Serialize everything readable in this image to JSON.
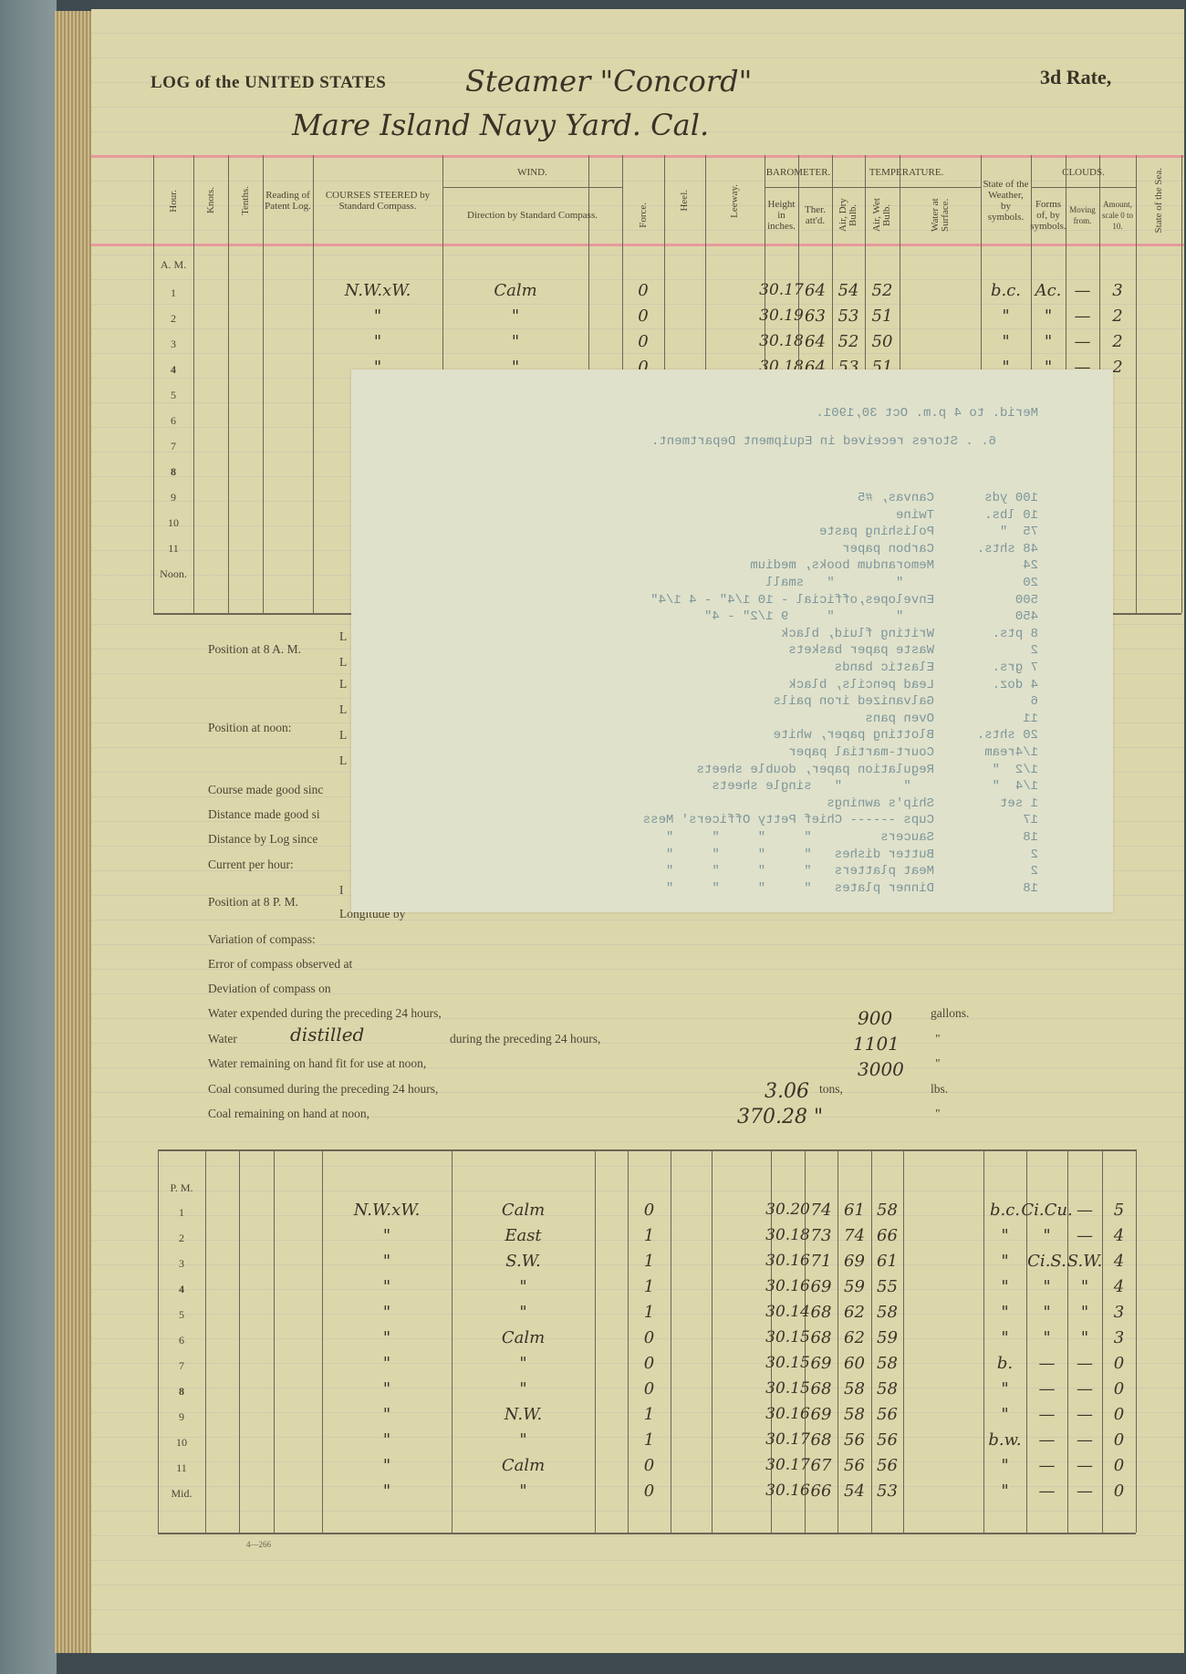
{
  "header": {
    "printed_title": "LOG of the UNITED STATES",
    "vessel": "Steamer \"Concord\"",
    "rate": "3d Rate,",
    "location": "Mare Island Navy Yard. Cal."
  },
  "columns": {
    "hour": "Hour.",
    "knots": "Knots.",
    "tenths": "Tenths.",
    "patent_log": "Reading of Patent Log.",
    "courses": "COURSES STEERED by Standard Compass.",
    "wind": "WIND.",
    "wind_direction": "Direction by Standard Compass.",
    "force": "Force.",
    "heel": "Heel.",
    "leeway": "Leeway.",
    "barometer": "BAROMETER.",
    "height": "Height in inches.",
    "ther": "Ther. att'd.",
    "temperature": "TEMPERATURE.",
    "dry": "Air, Dry Bulb.",
    "wet": "Air, Wet Bulb.",
    "water": "Water at Surface.",
    "weather": "State of the Weather, by symbols.",
    "clouds": "CLOUDS.",
    "forms": "Forms of, by symbols.",
    "moving": "Moving from.",
    "amount": "Amount, scale 0 to 10.",
    "sea": "State of the Sea."
  },
  "am": {
    "label": "A. M.",
    "hours": [
      "1",
      "2",
      "3",
      "4",
      "5",
      "6",
      "7",
      "8",
      "9",
      "10",
      "11",
      "Noon."
    ],
    "rows": [
      {
        "course": "N.W.xW.",
        "wind": "Calm",
        "force": "0",
        "height": "30.17",
        "ther": "64",
        "dry": "54",
        "wet": "52",
        "weather": "b.c.",
        "forms": "Ac.",
        "moving": "—",
        "amount": "3"
      },
      {
        "course": "\"",
        "wind": "\"",
        "force": "0",
        "height": "30.19",
        "ther": "63",
        "dry": "53",
        "wet": "51",
        "weather": "\"",
        "forms": "\"",
        "moving": "—",
        "amount": "2"
      },
      {
        "course": "\"",
        "wind": "\"",
        "force": "0",
        "height": "30.18",
        "ther": "64",
        "dry": "52",
        "wet": "50",
        "weather": "\"",
        "forms": "\"",
        "moving": "—",
        "amount": "2"
      },
      {
        "course": "\"",
        "wind": "\"",
        "force": "0",
        "height": "30.18",
        "ther": "64",
        "dry": "53",
        "wet": "51",
        "weather": "\"",
        "forms": "\"",
        "moving": "—",
        "amount": "2"
      }
    ]
  },
  "pm": {
    "label": "P. M.",
    "hours": [
      "1",
      "2",
      "3",
      "4",
      "5",
      "6",
      "7",
      "8",
      "9",
      "10",
      "11",
      "Mid."
    ],
    "rows": [
      {
        "course": "N.W.xW.",
        "wind": "Calm",
        "force": "0",
        "height": "30.20",
        "ther": "74",
        "dry": "61",
        "wet": "58",
        "weather": "b.c.",
        "forms": "Ci.Cu.",
        "moving": "—",
        "amount": "5"
      },
      {
        "course": "\"",
        "wind": "East",
        "force": "1",
        "height": "30.18",
        "ther": "73",
        "dry": "74",
        "wet": "66",
        "weather": "\"",
        "forms": "\"",
        "moving": "—",
        "amount": "4"
      },
      {
        "course": "\"",
        "wind": "S.W.",
        "force": "1",
        "height": "30.16",
        "ther": "71",
        "dry": "69",
        "wet": "61",
        "weather": "\"",
        "forms": "Ci.S.",
        "moving": "S.W.",
        "amount": "4"
      },
      {
        "course": "\"",
        "wind": "\"",
        "force": "1",
        "height": "30.16",
        "ther": "69",
        "dry": "59",
        "wet": "55",
        "weather": "\"",
        "forms": "\"",
        "moving": "\"",
        "amount": "4"
      },
      {
        "course": "\"",
        "wind": "\"",
        "force": "1",
        "height": "30.14",
        "ther": "68",
        "dry": "62",
        "wet": "58",
        "weather": "\"",
        "forms": "\"",
        "moving": "\"",
        "amount": "3"
      },
      {
        "course": "\"",
        "wind": "Calm",
        "force": "0",
        "height": "30.15",
        "ther": "68",
        "dry": "62",
        "wet": "59",
        "weather": "\"",
        "forms": "\"",
        "moving": "\"",
        "amount": "3"
      },
      {
        "course": "\"",
        "wind": "\"",
        "force": "0",
        "height": "30.15",
        "ther": "69",
        "dry": "60",
        "wet": "58",
        "weather": "b.",
        "forms": "—",
        "moving": "—",
        "amount": "0"
      },
      {
        "course": "\"",
        "wind": "\"",
        "force": "0",
        "height": "30.15",
        "ther": "68",
        "dry": "58",
        "wet": "58",
        "weather": "\"",
        "forms": "—",
        "moving": "—",
        "amount": "0"
      },
      {
        "course": "\"",
        "wind": "N.W.",
        "force": "1",
        "height": "30.16",
        "ther": "69",
        "dry": "58",
        "wet": "56",
        "weather": "\"",
        "forms": "—",
        "moving": "—",
        "amount": "0"
      },
      {
        "course": "\"",
        "wind": "\"",
        "force": "1",
        "height": "30.17",
        "ther": "68",
        "dry": "56",
        "wet": "56",
        "weather": "b.w.",
        "forms": "—",
        "moving": "—",
        "amount": "0"
      },
      {
        "course": "\"",
        "wind": "Calm",
        "force": "0",
        "height": "30.17",
        "ther": "67",
        "dry": "56",
        "wet": "56",
        "weather": "\"",
        "forms": "—",
        "moving": "—",
        "amount": "0"
      },
      {
        "course": "\"",
        "wind": "\"",
        "force": "0",
        "height": "30.16",
        "ther": "66",
        "dry": "54",
        "wet": "53",
        "weather": "\"",
        "forms": "—",
        "moving": "—",
        "amount": "0"
      }
    ]
  },
  "positions": {
    "pos_8am": "Position at 8 A. M.",
    "pos_noon": "Position at noon:",
    "L": "L",
    "course_made_good": "Course made good sinc",
    "distance_made_good": "Distance made good si",
    "distance_by_log": "Distance by Log since",
    "current": "Current per hour:",
    "pos_8pm": "Position at 8 P. M.",
    "pos_8pm_lat": "I",
    "pos_8pm_long": "Longitude by",
    "variation": "Variation of compass:",
    "error": "Error of compass observed at",
    "deviation": "Deviation of compass on"
  },
  "water_coal": {
    "water_expended": "Water expended during the preceding 24 hours,",
    "water_expended_value": "900",
    "gallons": "gallons.",
    "water_label": "Water",
    "water_method": "distilled",
    "water_during": "during the preceding 24 hours,",
    "water_distilled_value": "1101",
    "ditto": "\"",
    "water_remaining": "Water remaining on hand fit for use at noon,",
    "water_remaining_value": "3000",
    "coal_consumed": "Coal consumed during the preceding 24 hours,",
    "coal_consumed_value": "3.06",
    "tons": "tons,",
    "lbs": "lbs.",
    "coal_remaining": "Coal remaining on hand at noon,",
    "coal_remaining_value": "370.28 \""
  },
  "form_number": "4—266",
  "attached_sheet": {
    "heading": "Merid. to 4 p.m. Oct 30,1901.",
    "subheading": "6. . Stores received in Equipment Department.",
    "items": [
      {
        "qty": "100 yds",
        "item": "Canvas, #5"
      },
      {
        "qty": "10 lbs.",
        "item": "Twine"
      },
      {
        "qty": "75  \"",
        "item": "Polishing paste"
      },
      {
        "qty": "48 shts.",
        "item": "Carbon paper"
      },
      {
        "qty": "24",
        "item": "Memorandum books, medium"
      },
      {
        "qty": "20",
        "item": "    \"        \"   small"
      },
      {
        "qty": "500",
        "item": "Envelopes,official - 10 1/4\" - 4 1/4\""
      },
      {
        "qty": "450",
        "item": "    \"        \"     9 1/2\" - 4\""
      },
      {
        "qty": "8 pts.",
        "item": "Writing fluid, black"
      },
      {
        "qty": "2",
        "item": "Waste paper baskets"
      },
      {
        "qty": "7 grs.",
        "item": "Elastic bands"
      },
      {
        "qty": "4 doz.",
        "item": "Lead pencils, black"
      },
      {
        "qty": "6",
        "item": "Galvanized iron pails"
      },
      {
        "qty": "11",
        "item": "Oven pans"
      },
      {
        "qty": "20 shts.",
        "item": "Blotting paper, white"
      },
      {
        "qty": "1/4ream",
        "item": "Court-martial paper"
      },
      {
        "qty": "1/2  \"",
        "item": "Regulation paper, double sheets"
      },
      {
        "qty": "1/4  \"",
        "item": "   \"        \"   single sheets"
      },
      {
        "qty": "1 set",
        "item": "Ship's awnings"
      },
      {
        "qty": "17",
        "item": "Cups ------ Chief Petty Officers' Mess"
      },
      {
        "qty": "18",
        "item": "Saucers         \"     \"     \"     \""
      },
      {
        "qty": "2",
        "item": "Butter dishes   \"     \"     \"     \""
      },
      {
        "qty": "2",
        "item": "Meat platters   \"     \"     \"     \""
      },
      {
        "qty": "18",
        "item": "Dinner plates   \"     \"     \"     \""
      }
    ]
  }
}
